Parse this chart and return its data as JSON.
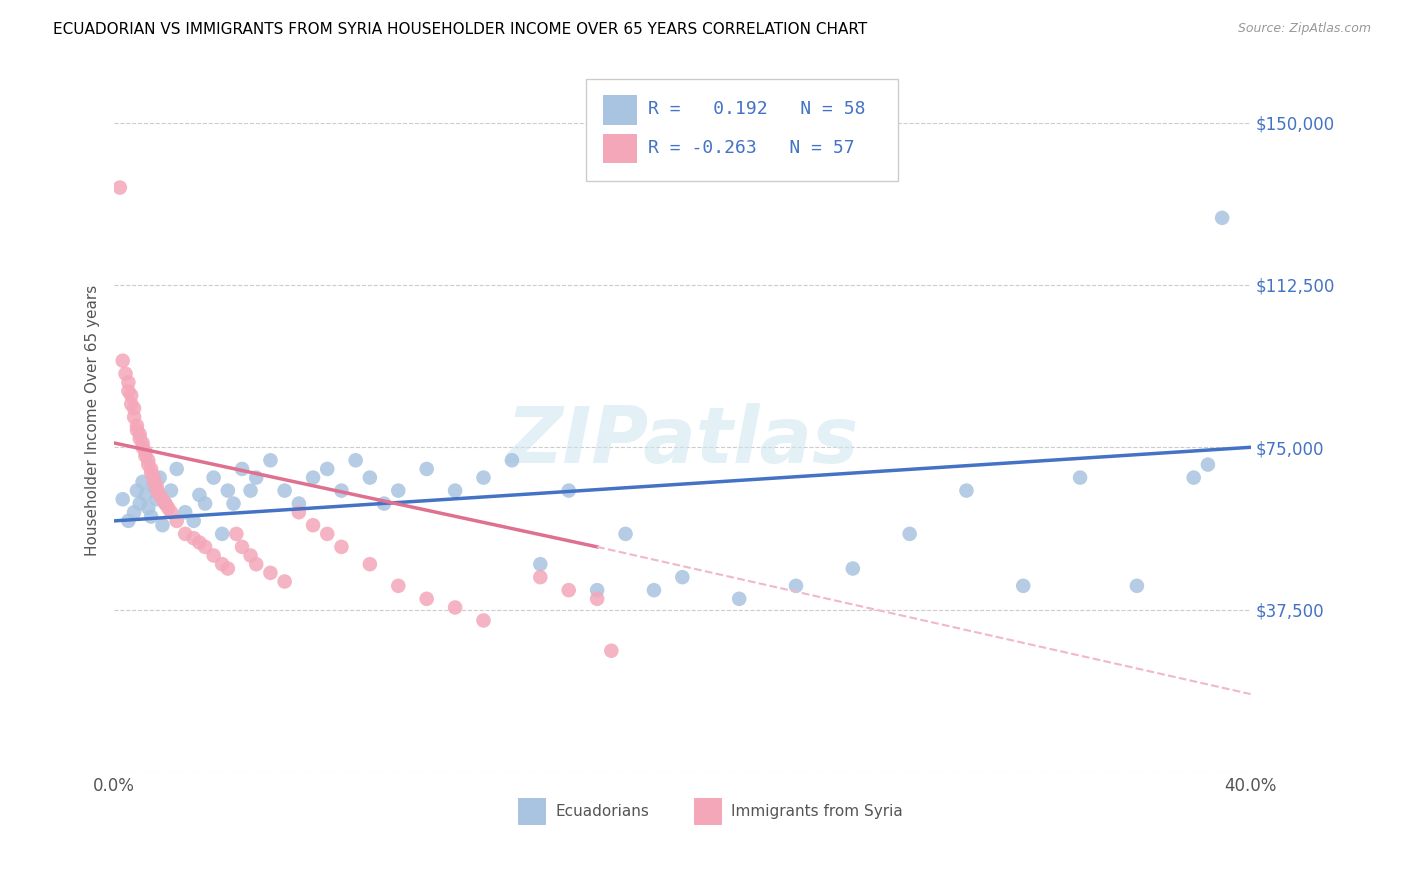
{
  "title": "ECUADORIAN VS IMMIGRANTS FROM SYRIA HOUSEHOLDER INCOME OVER 65 YEARS CORRELATION CHART",
  "source": "Source: ZipAtlas.com",
  "ylabel": "Householder Income Over 65 years",
  "xlim": [
    0.0,
    0.4
  ],
  "ylim": [
    0,
    162500
  ],
  "ytick_positions": [
    0,
    37500,
    75000,
    112500,
    150000
  ],
  "ytick_labels": [
    "",
    "$37,500",
    "$75,000",
    "$112,500",
    "$150,000"
  ],
  "legend1_r": "0.192",
  "legend1_n": "58",
  "legend2_r": "-0.263",
  "legend2_n": "57",
  "color_blue": "#a8c4e0",
  "color_pink": "#f4a7b9",
  "line_blue": "#4472c4",
  "line_pink": "#e07090",
  "line_pink_dash": "#f0b8c8",
  "watermark": "ZIPatlas",
  "blue_scatter_x": [
    0.003,
    0.005,
    0.007,
    0.008,
    0.009,
    0.01,
    0.011,
    0.012,
    0.013,
    0.014,
    0.015,
    0.016,
    0.017,
    0.018,
    0.02,
    0.022,
    0.025,
    0.028,
    0.03,
    0.032,
    0.035,
    0.038,
    0.04,
    0.042,
    0.045,
    0.048,
    0.05,
    0.055,
    0.06,
    0.065,
    0.07,
    0.075,
    0.08,
    0.085,
    0.09,
    0.095,
    0.1,
    0.11,
    0.12,
    0.13,
    0.14,
    0.15,
    0.16,
    0.17,
    0.18,
    0.19,
    0.2,
    0.22,
    0.24,
    0.26,
    0.28,
    0.3,
    0.32,
    0.34,
    0.36,
    0.38,
    0.385,
    0.39
  ],
  "blue_scatter_y": [
    63000,
    58000,
    60000,
    65000,
    62000,
    67000,
    64000,
    61000,
    59000,
    66000,
    63000,
    68000,
    57000,
    62000,
    65000,
    70000,
    60000,
    58000,
    64000,
    62000,
    68000,
    55000,
    65000,
    62000,
    70000,
    65000,
    68000,
    72000,
    65000,
    62000,
    68000,
    70000,
    65000,
    72000,
    68000,
    62000,
    65000,
    70000,
    65000,
    68000,
    72000,
    48000,
    65000,
    42000,
    55000,
    42000,
    45000,
    40000,
    43000,
    47000,
    55000,
    65000,
    43000,
    68000,
    43000,
    68000,
    71000,
    128000
  ],
  "pink_scatter_x": [
    0.002,
    0.003,
    0.004,
    0.005,
    0.005,
    0.006,
    0.006,
    0.007,
    0.007,
    0.008,
    0.008,
    0.009,
    0.009,
    0.01,
    0.01,
    0.011,
    0.011,
    0.012,
    0.012,
    0.013,
    0.013,
    0.014,
    0.014,
    0.015,
    0.015,
    0.016,
    0.017,
    0.018,
    0.019,
    0.02,
    0.022,
    0.025,
    0.028,
    0.03,
    0.032,
    0.035,
    0.038,
    0.04,
    0.043,
    0.045,
    0.048,
    0.05,
    0.055,
    0.06,
    0.065,
    0.07,
    0.075,
    0.08,
    0.09,
    0.1,
    0.11,
    0.12,
    0.13,
    0.15,
    0.16,
    0.17,
    0.175
  ],
  "pink_scatter_y": [
    135000,
    95000,
    92000,
    90000,
    88000,
    87000,
    85000,
    84000,
    82000,
    80000,
    79000,
    78000,
    77000,
    76000,
    75000,
    74000,
    73000,
    72000,
    71000,
    70000,
    69000,
    68000,
    67000,
    66000,
    65000,
    64000,
    63000,
    62000,
    61000,
    60000,
    58000,
    55000,
    54000,
    53000,
    52000,
    50000,
    48000,
    47000,
    55000,
    52000,
    50000,
    48000,
    46000,
    44000,
    60000,
    57000,
    55000,
    52000,
    48000,
    43000,
    40000,
    38000,
    35000,
    45000,
    42000,
    40000,
    28000
  ]
}
